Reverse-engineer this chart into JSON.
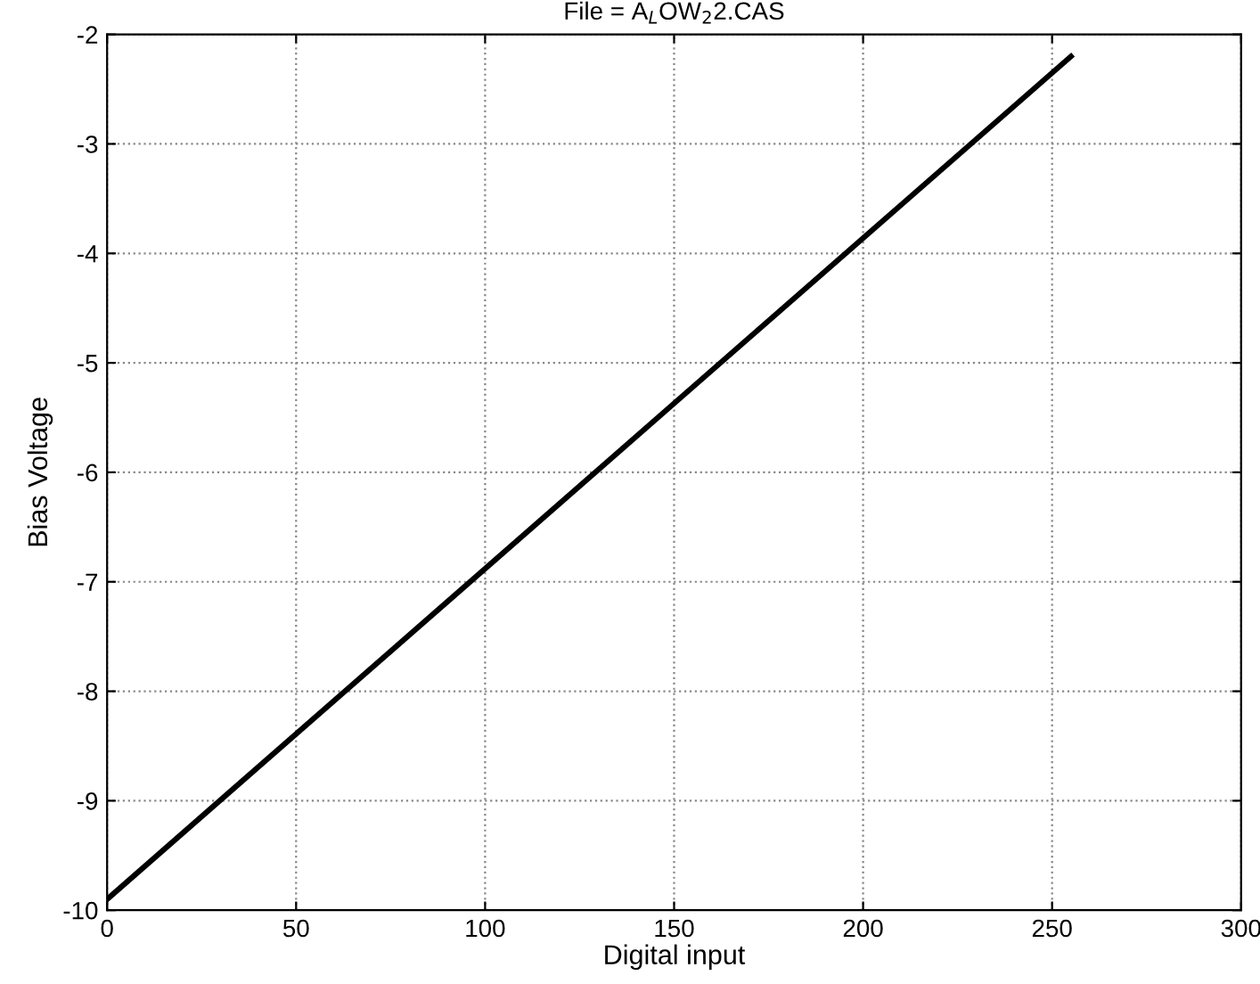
{
  "chart_data": {
    "type": "line",
    "title": "File = A$_{L}$OW$_{2}$2.CAS",
    "xlabel": "Digital input",
    "ylabel": "Bias Voltage",
    "x": [
      0,
      255
    ],
    "series": [
      {
        "color": "#000000",
        "values": [
          -9.9,
          -2.2
        ]
      }
    ],
    "xlim": [
      0,
      300
    ],
    "xticks": [
      0,
      50,
      100,
      150,
      200,
      250,
      300
    ],
    "ylim": [
      -10,
      -2
    ],
    "yticks": [
      -10,
      -9,
      -8,
      -7,
      -6,
      -5,
      -4,
      -3,
      -2
    ],
    "grid": true,
    "marker": "none",
    "line_style": "solid",
    "legend": false
  }
}
